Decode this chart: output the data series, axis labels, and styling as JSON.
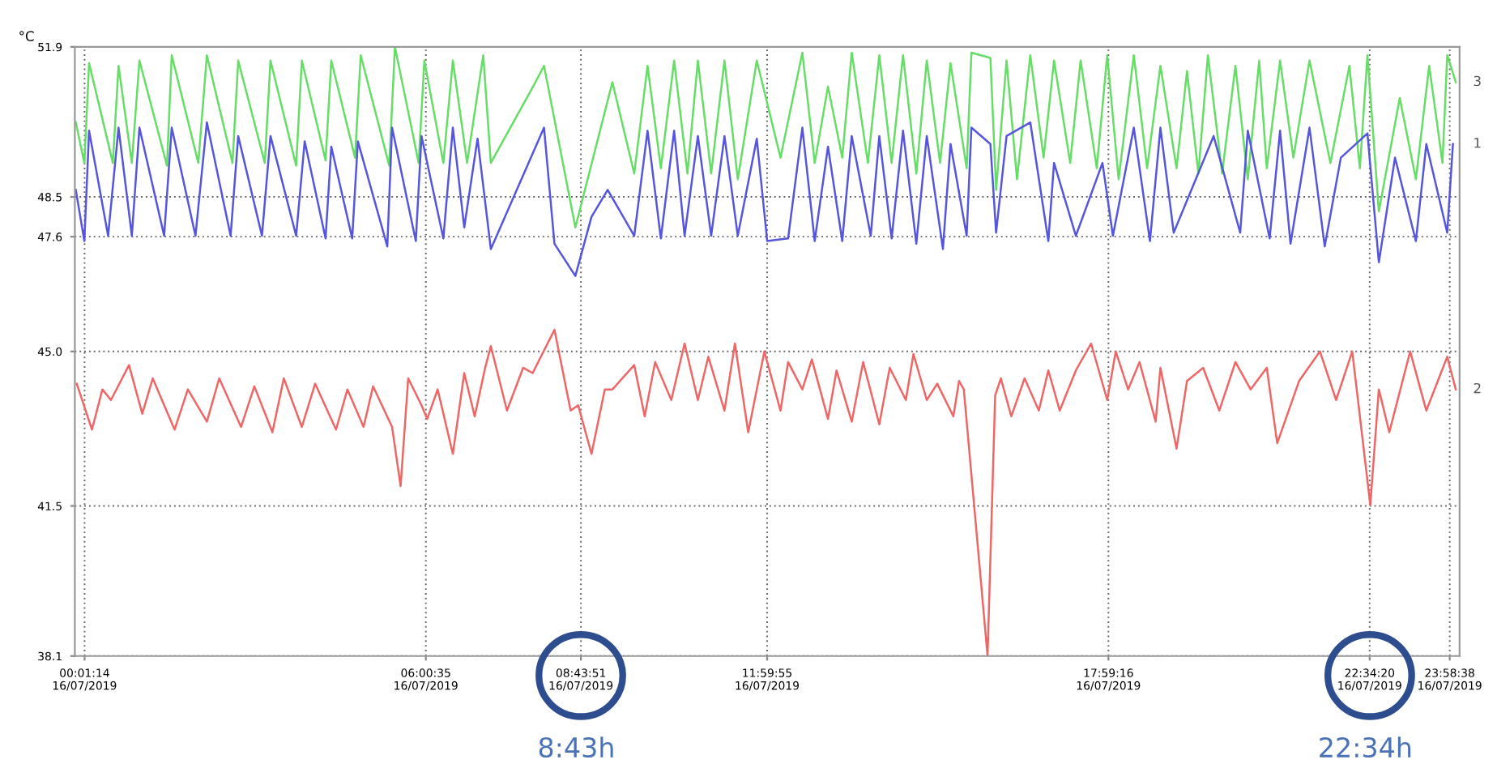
{
  "chart_data": {
    "type": "line",
    "ylabel": "°C",
    "xlim": [
      "2019-07-15T23:51",
      "2019-07-17T00:09"
    ],
    "ylim": [
      38.1,
      51.9
    ],
    "yticks": [
      38.1,
      41.5,
      {
        "value": 45,
        "label": "45.0"
      },
      47.6,
      48.5,
      51.9
    ],
    "xticks": [
      {
        "value": "2019-07-16T00:01:14",
        "label": "00:01:14\n16/07/2019"
      },
      {
        "value": "2019-07-16T06:00:35",
        "label": "06:00:35\n16/07/2019"
      },
      {
        "value": "2019-07-16T08:43:51",
        "label": "08:43:51\n16/07/2019"
      },
      {
        "value": "2019-07-16T11:59:55",
        "label": "11:59:55\n16/07/2019"
      },
      {
        "value": "2019-07-16T17:59:16",
        "label": "17:59:16\n16/07/2019"
      },
      {
        "value": "2019-07-16T22:34:20",
        "label": "22:34:20\n16/07/2019"
      },
      {
        "value": "2019-07-16T23:58:38",
        "label": "23:58:38\n16/07/2019"
      }
    ],
    "grid": true,
    "line_style": "solid",
    "marker": "none",
    "annotations": [
      "8:43h",
      "22:34h"
    ],
    "series": [
      {
        "name": "3",
        "color": "#66dd66",
        "x": [
          "2019-07-15T23:52",
          "2019-07-16T00:01",
          "2019-07-16T00:06",
          "2019-07-16T00:31",
          "2019-07-16T00:37",
          "2019-07-16T00:51",
          "2019-07-16T00:59",
          "2019-07-16T01:28",
          "2019-07-16T01:33",
          "2019-07-16T02:01",
          "2019-07-16T02:10",
          "2019-07-16T02:37",
          "2019-07-16T02:43",
          "2019-07-16T03:11",
          "2019-07-16T03:17",
          "2019-07-16T03:44",
          "2019-07-16T03:50",
          "2019-07-16T04:15",
          "2019-07-16T04:21",
          "2019-07-16T04:46",
          "2019-07-16T04:52",
          "2019-07-16T05:22",
          "2019-07-16T05:28",
          "2019-07-16T05:53",
          "2019-07-16T05:59",
          "2019-07-16T06:19",
          "2019-07-16T06:29",
          "2019-07-16T06:44",
          "2019-07-16T07:01",
          "2019-07-16T07:09",
          "2019-07-16T07:53",
          "2019-07-16T08:05",
          "2019-07-16T08:38",
          "2019-07-16T09:17",
          "2019-07-16T09:40",
          "2019-07-16T09:54",
          "2019-07-16T10:08",
          "2019-07-16T10:22",
          "2019-07-16T10:36",
          "2019-07-16T10:47",
          "2019-07-16T11:01",
          "2019-07-16T11:15",
          "2019-07-16T11:29",
          "2019-07-16T11:49",
          "2019-07-16T12:14",
          "2019-07-16T12:37",
          "2019-07-16T12:50",
          "2019-07-16T13:04",
          "2019-07-16T13:19",
          "2019-07-16T13:29",
          "2019-07-16T13:46",
          "2019-07-16T13:58",
          "2019-07-16T14:11",
          "2019-07-16T14:23",
          "2019-07-16T14:37",
          "2019-07-16T14:48",
          "2019-07-16T15:02",
          "2019-07-16T15:13",
          "2019-07-16T15:30",
          "2019-07-16T15:35",
          "2019-07-16T15:55",
          "2019-07-16T16:01",
          "2019-07-16T16:12",
          "2019-07-16T16:23",
          "2019-07-16T16:37",
          "2019-07-16T16:51",
          "2019-07-16T17:02",
          "2019-07-16T17:19",
          "2019-07-16T17:30",
          "2019-07-16T17:47",
          "2019-07-16T17:58",
          "2019-07-16T18:10",
          "2019-07-16T18:26",
          "2019-07-16T18:40",
          "2019-07-16T18:54",
          "2019-07-16T19:11",
          "2019-07-16T19:22",
          "2019-07-16T19:34",
          "2019-07-16T19:44",
          "2019-07-16T19:59",
          "2019-07-16T20:13",
          "2019-07-16T20:26",
          "2019-07-16T20:38",
          "2019-07-16T20:46",
          "2019-07-16T21:00",
          "2019-07-16T21:14",
          "2019-07-16T21:31",
          "2019-07-16T21:53",
          "2019-07-16T22:13",
          "2019-07-16T22:24",
          "2019-07-16T22:32",
          "2019-07-16T22:44",
          "2019-07-16T23:06",
          "2019-07-16T23:23",
          "2019-07-16T23:37",
          "2019-07-16T23:51",
          "2019-07-16T23:56",
          "2019-07-17T00:05"
        ],
        "values": [
          50.19,
          49.27,
          51.53,
          49.27,
          51.47,
          49.27,
          51.59,
          49.21,
          51.71,
          49.27,
          51.71,
          49.27,
          51.59,
          49.27,
          51.59,
          49.21,
          51.59,
          49.33,
          51.59,
          49.39,
          51.71,
          49.21,
          51.9,
          49.27,
          51.59,
          49.27,
          51.59,
          49.27,
          51.71,
          49.27,
          50.98,
          51.47,
          47.81,
          51.1,
          49.03,
          51.47,
          49.15,
          51.59,
          49.03,
          51.59,
          49.03,
          51.59,
          48.9,
          51.59,
          49.39,
          51.77,
          49.27,
          51.0,
          49.39,
          51.77,
          49.27,
          51.71,
          49.27,
          51.71,
          49.03,
          51.59,
          49.27,
          51.53,
          49.15,
          51.77,
          51.65,
          48.66,
          51.59,
          48.9,
          51.71,
          49.39,
          51.59,
          49.27,
          51.59,
          49.15,
          51.71,
          48.9,
          51.71,
          49.15,
          51.47,
          49.15,
          51.35,
          49.03,
          51.71,
          49.03,
          51.47,
          48.9,
          51.59,
          49.15,
          51.59,
          49.39,
          51.59,
          49.27,
          51.47,
          49.15,
          51.71,
          48.17,
          50.74,
          48.9,
          51.47,
          49.27,
          51.71,
          51.1
        ]
      },
      {
        "name": "1",
        "color": "#5555dd",
        "x": [
          "2019-07-15T23:52",
          "2019-07-16T00:01",
          "2019-07-16T00:06",
          "2019-07-16T00:26",
          "2019-07-16T00:37",
          "2019-07-16T00:51",
          "2019-07-16T00:59",
          "2019-07-16T01:25",
          "2019-07-16T01:33",
          "2019-07-16T01:58",
          "2019-07-16T02:10",
          "2019-07-16T02:35",
          "2019-07-16T02:43",
          "2019-07-16T03:08",
          "2019-07-16T03:17",
          "2019-07-16T03:44",
          "2019-07-16T03:53",
          "2019-07-16T04:15",
          "2019-07-16T04:21",
          "2019-07-16T04:43",
          "2019-07-16T04:49",
          "2019-07-16T05:20",
          "2019-07-16T05:25",
          "2019-07-16T05:50",
          "2019-07-16T05:56",
          "2019-07-16T06:19",
          "2019-07-16T06:29",
          "2019-07-16T06:41",
          "2019-07-16T06:55",
          "2019-07-16T07:09",
          "2019-07-16T08:05",
          "2019-07-16T08:16",
          "2019-07-16T08:38",
          "2019-07-16T08:55",
          "2019-07-16T09:12",
          "2019-07-16T09:40",
          "2019-07-16T09:54",
          "2019-07-16T10:08",
          "2019-07-16T10:22",
          "2019-07-16T10:33",
          "2019-07-16T10:47",
          "2019-07-16T11:01",
          "2019-07-16T11:15",
          "2019-07-16T11:29",
          "2019-07-16T11:49",
          "2019-07-16T12:00",
          "2019-07-16T12:22",
          "2019-07-16T12:37",
          "2019-07-16T12:50",
          "2019-07-16T13:04",
          "2019-07-16T13:19",
          "2019-07-16T13:29",
          "2019-07-16T13:49",
          "2019-07-16T13:58",
          "2019-07-16T14:11",
          "2019-07-16T14:23",
          "2019-07-16T14:37",
          "2019-07-16T14:48",
          "2019-07-16T15:05",
          "2019-07-16T15:13",
          "2019-07-16T15:30",
          "2019-07-16T15:35",
          "2019-07-16T15:55",
          "2019-07-16T16:01",
          "2019-07-16T16:12",
          "2019-07-16T16:37",
          "2019-07-16T16:56",
          "2019-07-16T17:02",
          "2019-07-16T17:25",
          "2019-07-16T17:53",
          "2019-07-16T18:04",
          "2019-07-16T18:26",
          "2019-07-16T18:43",
          "2019-07-16T18:54",
          "2019-07-16T19:08",
          "2019-07-16T19:50",
          "2019-07-16T20:18",
          "2019-07-16T20:26",
          "2019-07-16T20:49",
          "2019-07-16T21:00",
          "2019-07-16T21:11",
          "2019-07-16T21:31",
          "2019-07-16T21:47",
          "2019-07-16T22:04",
          "2019-07-16T22:32",
          "2019-07-16T22:44",
          "2019-07-16T23:01",
          "2019-07-16T23:23",
          "2019-07-16T23:34",
          "2019-07-16T23:56",
          "2019-07-17T00:02"
        ],
        "values": [
          48.66,
          47.5,
          50.0,
          47.62,
          50.07,
          47.62,
          50.07,
          47.62,
          50.07,
          47.62,
          50.19,
          47.62,
          49.88,
          47.62,
          49.88,
          47.62,
          49.76,
          47.56,
          49.64,
          47.56,
          49.76,
          47.38,
          50.07,
          47.5,
          49.88,
          47.56,
          50.07,
          47.81,
          49.82,
          47.32,
          50.07,
          47.44,
          46.71,
          48.05,
          48.66,
          47.62,
          50.0,
          47.56,
          50.0,
          47.62,
          49.88,
          47.62,
          49.88,
          47.62,
          49.82,
          47.5,
          47.56,
          50.07,
          47.5,
          49.64,
          47.5,
          49.88,
          47.62,
          49.88,
          47.56,
          50.0,
          47.44,
          49.88,
          47.32,
          49.7,
          47.62,
          50.07,
          49.7,
          47.69,
          49.88,
          50.19,
          47.5,
          49.27,
          47.62,
          49.27,
          47.62,
          50.07,
          47.5,
          50.07,
          47.69,
          49.88,
          47.69,
          50.0,
          47.56,
          50.0,
          47.44,
          50.07,
          47.38,
          49.39,
          49.94,
          47.02,
          49.39,
          47.5,
          49.7,
          47.69,
          49.7
        ]
      },
      {
        "name": "2",
        "color": "#ee6666",
        "x": [
          "2019-07-15T23:53",
          "2019-07-16T00:09",
          "2019-07-16T00:20",
          "2019-07-16T00:29",
          "2019-07-16T00:48",
          "2019-07-16T01:02",
          "2019-07-16T01:13",
          "2019-07-16T01:36",
          "2019-07-16T01:50",
          "2019-07-16T02:10",
          "2019-07-16T02:23",
          "2019-07-16T02:46",
          "2019-07-16T03:00",
          "2019-07-16T03:19",
          "2019-07-16T03:31",
          "2019-07-16T03:50",
          "2019-07-16T04:04",
          "2019-07-16T04:26",
          "2019-07-16T04:38",
          "2019-07-16T04:55",
          "2019-07-16T05:05",
          "2019-07-16T05:25",
          "2019-07-16T05:34",
          "2019-07-16T05:42",
          "2019-07-16T05:56",
          "2019-07-16T06:02",
          "2019-07-16T06:13",
          "2019-07-16T06:29",
          "2019-07-16T06:41",
          "2019-07-16T06:52",
          "2019-07-16T07:03",
          "2019-07-16T07:09",
          "2019-07-16T07:26",
          "2019-07-16T07:43",
          "2019-07-16T07:53",
          "2019-07-16T08:16",
          "2019-07-16T08:33",
          "2019-07-16T08:41",
          "2019-07-16T08:55",
          "2019-07-16T09:09",
          "2019-07-16T09:17",
          "2019-07-16T09:40",
          "2019-07-16T09:51",
          "2019-07-16T10:02",
          "2019-07-16T10:19",
          "2019-07-16T10:33",
          "2019-07-16T10:47",
          "2019-07-16T10:58",
          "2019-07-16T11:15",
          "2019-07-16T11:26",
          "2019-07-16T11:40",
          "2019-07-16T11:57",
          "2019-07-16T12:14",
          "2019-07-16T12:22",
          "2019-07-16T12:37",
          "2019-07-16T12:47",
          "2019-07-16T13:04",
          "2019-07-16T13:13",
          "2019-07-16T13:29",
          "2019-07-16T13:41",
          "2019-07-16T13:58",
          "2019-07-16T14:09",
          "2019-07-16T14:26",
          "2019-07-16T14:34",
          "2019-07-16T14:48",
          "2019-07-16T14:59",
          "2019-07-16T15:16",
          "2019-07-16T15:22",
          "2019-07-16T15:27",
          "2019-07-16T15:52",
          "2019-07-16T16:00",
          "2019-07-16T16:06",
          "2019-07-16T16:17",
          "2019-07-16T16:31",
          "2019-07-16T16:46",
          "2019-07-16T16:56",
          "2019-07-16T17:08",
          "2019-07-16T17:25",
          "2019-07-16T17:41",
          "2019-07-16T17:58",
          "2019-07-16T18:07",
          "2019-07-16T18:20",
          "2019-07-16T18:32",
          "2019-07-16T18:49",
          "2019-07-16T18:54",
          "2019-07-16T19:11",
          "2019-07-16T19:22",
          "2019-07-16T19:39",
          "2019-07-16T19:56",
          "2019-07-16T20:13",
          "2019-07-16T20:29",
          "2019-07-16T20:46",
          "2019-07-16T20:57",
          "2019-07-16T21:20",
          "2019-07-16T21:42",
          "2019-07-16T21:59",
          "2019-07-16T22:16",
          "2019-07-16T22:35",
          "2019-07-16T22:44",
          "2019-07-16T22:55",
          "2019-07-16T23:17",
          "2019-07-16T23:34",
          "2019-07-16T23:56",
          "2019-07-17T00:05"
        ],
        "values": [
          44.27,
          43.23,
          44.14,
          43.9,
          44.69,
          43.59,
          44.39,
          43.23,
          44.14,
          43.41,
          44.39,
          43.29,
          44.21,
          43.17,
          44.39,
          43.29,
          44.27,
          43.23,
          44.14,
          43.29,
          44.21,
          43.29,
          41.95,
          44.39,
          43.78,
          43.47,
          44.14,
          42.68,
          44.51,
          43.53,
          44.63,
          45.12,
          43.66,
          44.63,
          44.51,
          45.49,
          43.66,
          43.78,
          42.68,
          44.14,
          44.14,
          44.69,
          43.53,
          44.76,
          43.9,
          45.18,
          43.9,
          44.88,
          43.66,
          45.18,
          43.17,
          45.0,
          43.66,
          44.76,
          44.14,
          44.82,
          43.47,
          44.57,
          43.41,
          44.76,
          43.35,
          44.63,
          43.9,
          44.94,
          43.9,
          44.27,
          43.53,
          44.33,
          44.14,
          38.1,
          44.0,
          44.39,
          43.53,
          44.39,
          43.66,
          44.57,
          43.66,
          44.57,
          45.18,
          43.9,
          45.0,
          44.14,
          44.76,
          43.41,
          44.63,
          42.8,
          44.33,
          44.63,
          43.66,
          44.76,
          44.14,
          44.63,
          42.92,
          44.33,
          45.0,
          43.9,
          45.0,
          41.52,
          44.14,
          43.17,
          45.0,
          43.66,
          44.88,
          44.14
        ]
      }
    ]
  }
}
